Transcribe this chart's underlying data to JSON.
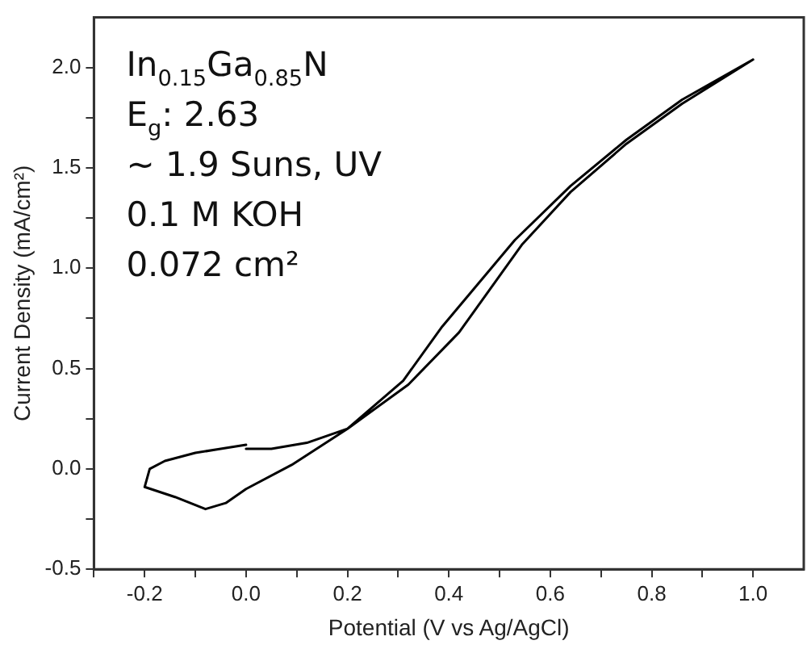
{
  "chart_data": {
    "type": "line",
    "xlabel": "Potential (V vs Ag/AgCl)",
    "ylabel": "Current Density (mA/cm²)",
    "annotations": [
      "In$_{0.15}$Ga$_{0.85}$N",
      "E$_{g}$: 2.63",
      "~ 1.9 Suns, UV",
      "0.1 M KOH",
      "0.072 cm²"
    ],
    "series": [
      {
        "color": "#000000",
        "x": [
          0.0,
          -0.05,
          -0.1,
          -0.16,
          -0.19,
          -0.2,
          -0.14,
          -0.08,
          -0.04,
          0.0,
          0.09,
          0.2,
          0.31,
          0.387,
          0.53,
          0.64,
          0.75,
          0.86,
          1.0,
          0.86,
          0.75,
          0.64,
          0.545,
          0.42,
          0.32,
          0.2,
          0.12,
          0.05,
          0.0
        ],
        "values": [
          0.12,
          0.1,
          0.08,
          0.04,
          0.0,
          -0.09,
          -0.14,
          -0.2,
          -0.17,
          -0.1,
          0.02,
          0.2,
          0.44,
          0.71,
          1.14,
          1.41,
          1.64,
          1.84,
          2.04,
          1.82,
          1.62,
          1.38,
          1.12,
          0.68,
          0.42,
          0.2,
          0.13,
          0.1,
          0.1
        ]
      }
    ],
    "xlim": [
      -0.3,
      1.1
    ],
    "ylim": [
      -0.5,
      2.25
    ],
    "xticks": [
      {
        "value": -0.3,
        "label": null
      },
      {
        "value": -0.2,
        "label": "-0.2"
      },
      {
        "value": -0.1,
        "label": null
      },
      {
        "value": 0,
        "label": "0.0"
      },
      {
        "value": 0.1,
        "label": null
      },
      {
        "value": 0.2,
        "label": "0.2"
      },
      {
        "value": 0.3,
        "label": null
      },
      {
        "value": 0.4,
        "label": "0.4"
      },
      {
        "value": 0.5,
        "label": null
      },
      {
        "value": 0.6,
        "label": "0.6"
      },
      {
        "value": 0.7,
        "label": null
      },
      {
        "value": 0.8,
        "label": "0.8"
      },
      {
        "value": 0.9,
        "label": null
      },
      {
        "value": 1.0,
        "label": "1.0"
      }
    ],
    "yticks": [
      {
        "value": -0.5,
        "label": "-0.5"
      },
      {
        "value": -0.25,
        "label": null
      },
      {
        "value": 0,
        "label": "0.0"
      },
      {
        "value": 0.25,
        "label": null
      },
      {
        "value": 0.5,
        "label": "0.5"
      },
      {
        "value": 0.75,
        "label": null
      },
      {
        "value": 1.0,
        "label": "1.0"
      },
      {
        "value": 1.25,
        "label": null
      },
      {
        "value": 1.5,
        "label": "1.5"
      },
      {
        "value": 1.75,
        "label": null
      },
      {
        "value": 2.0,
        "label": "2.0"
      }
    ],
    "grid": false,
    "legend": false,
    "marker": "none",
    "line_style": "solid"
  }
}
